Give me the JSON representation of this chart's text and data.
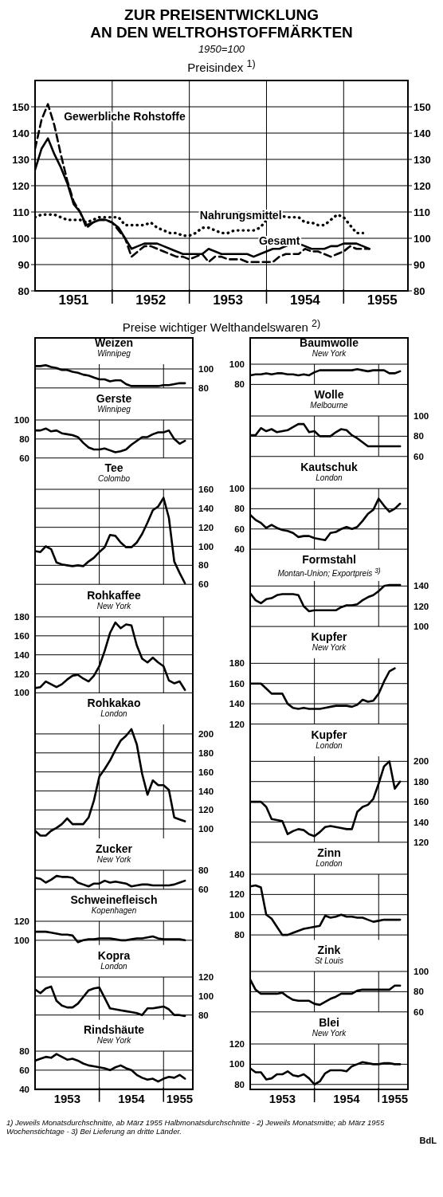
{
  "chart_data": [
    {
      "type": "line",
      "title": "ZUR PREISENTWICKLUNG\nAN DEN WELTROHSTOFFMÄRKTEN",
      "subtitle": "1950=100",
      "annotations": [
        "Preisindex $^{1)}$",
        "Preise wichtiger Welthandelswaren $^{2)}$",
        "1) Jeweils Monatsdurchschnitte, ab März 1955 Halbmonatsdurchschnitte - 2) Jeweils Monatsmitte; ab März 1955 Wochenstichtage - 3) Bei Lieferung an dritte Länder.",
        "BdL"
      ],
      "x": [
        "1951-01",
        "1951-02",
        "1951-03",
        "1951-04",
        "1951-05",
        "1951-06",
        "1951-07",
        "1951-08",
        "1951-09",
        "1951-10",
        "1951-11",
        "1951-12",
        "1952-01",
        "1952-02",
        "1952-03",
        "1952-04",
        "1952-05",
        "1952-06",
        "1952-07",
        "1952-08",
        "1952-09",
        "1952-10",
        "1952-11",
        "1952-12",
        "1953-01",
        "1953-02",
        "1953-03",
        "1953-04",
        "1953-05",
        "1953-06",
        "1953-07",
        "1953-08",
        "1953-09",
        "1953-10",
        "1953-11",
        "1953-12",
        "1954-01",
        "1954-02",
        "1954-03",
        "1954-04",
        "1954-05",
        "1954-06",
        "1954-07",
        "1954-08",
        "1954-09",
        "1954-10",
        "1954-11",
        "1954-12",
        "1955-01",
        "1955-02",
        "1955-03",
        "1955-04",
        "1955-05"
      ],
      "series": [
        {
          "name": "Gesamt",
          "color": "#000000",
          "line_style": "solid",
          "values": [
            126,
            134,
            138,
            132,
            127,
            121,
            113,
            110,
            105,
            106,
            107,
            107,
            106,
            104,
            100,
            96,
            97,
            98,
            98,
            98,
            97,
            96,
            95,
            94,
            94,
            94,
            94,
            96,
            95,
            94,
            94,
            94,
            94,
            94,
            93,
            94,
            95,
            96,
            96,
            97,
            98,
            98,
            97,
            96,
            96,
            96,
            97,
            97,
            98,
            98,
            98,
            97,
            96
          ]
        },
        {
          "name": "Gewerbliche Rohstoffe",
          "color": "#000000",
          "line_style": "dashed",
          "values": [
            134,
            145,
            151,
            143,
            132,
            122,
            114,
            110,
            104,
            106,
            107,
            107,
            106,
            103,
            100,
            93,
            95,
            97,
            97,
            96,
            95,
            94,
            93,
            93,
            92,
            93,
            94,
            91,
            93,
            93,
            92,
            92,
            92,
            91,
            91,
            91,
            91,
            91,
            93,
            94,
            94,
            94,
            96,
            95,
            95,
            94,
            93,
            94,
            95,
            97,
            96,
            96,
            96
          ]
        },
        {
          "name": "Nahrungsmittel",
          "color": "#000000",
          "line_style": "dotted",
          "values": [
            108,
            109,
            109,
            109,
            108,
            107,
            107,
            107,
            106,
            107,
            108,
            108,
            108,
            108,
            105,
            105,
            105,
            105,
            106,
            104,
            103,
            102,
            102,
            101,
            101,
            102,
            104,
            104,
            103,
            102,
            102,
            103,
            103,
            103,
            103,
            104,
            107,
            108,
            109,
            108,
            108,
            108,
            106,
            106,
            105,
            105,
            107,
            109,
            108,
            105,
            102,
            102,
            null
          ]
        }
      ],
      "xlim": [
        "1951-01",
        "1955-11"
      ],
      "xticks": [
        {
          "value": "1951-07",
          "label": "1951"
        },
        {
          "value": "1952-01",
          "label": null
        },
        {
          "value": "1952-07",
          "label": "1952"
        },
        {
          "value": "1953-01",
          "label": null
        },
        {
          "value": "1953-07",
          "label": "1953"
        },
        {
          "value": "1954-01",
          "label": null
        },
        {
          "value": "1954-07",
          "label": "1954"
        },
        {
          "value": "1955-01",
          "label": null
        },
        {
          "value": "1955-07",
          "label": "1955"
        }
      ],
      "ylim": [
        80,
        160
      ],
      "yticks": [
        80,
        90,
        100,
        110,
        120,
        130,
        140,
        150
      ],
      "y2lim": [
        80,
        160
      ],
      "y2ticks": [
        80,
        90,
        100,
        110,
        120,
        130,
        140,
        150
      ],
      "grid": true
    },
    {
      "type": "line",
      "title": "Weizen",
      "subtitle": "Winnipeg",
      "tick_labels": "y",
      "grid": true,
      "x": [
        "1953-01",
        "1953-02",
        "1953-03",
        "1953-04",
        "1953-05",
        "1953-06",
        "1953-07",
        "1953-08",
        "1953-09",
        "1953-10",
        "1953-11",
        "1953-12",
        "1954-01",
        "1954-02",
        "1954-03",
        "1954-04",
        "1954-05",
        "1954-06",
        "1954-07",
        "1954-08",
        "1954-09",
        "1954-10",
        "1954-11",
        "1954-12",
        "1955-01",
        "1955-02",
        "1955-03",
        "1955-04",
        "1955-05"
      ],
      "xlim": [
        "1953-01",
        "1955-06-15"
      ],
      "xticks": [
        {
          "value": "1954-01",
          "label": null
        },
        {
          "value": "1955-01",
          "label": null
        }
      ],
      "ylim": [
        80,
        105
      ],
      "yticks": [
        80,
        100
      ],
      "series": [
        {
          "color": "#000000",
          "values": [
            103,
            103,
            104,
            102,
            101,
            99,
            99,
            97,
            96,
            94,
            93,
            91,
            89,
            89,
            87,
            88,
            88,
            84,
            82,
            82,
            82,
            82,
            82,
            82,
            83,
            83,
            84,
            85,
            85
          ]
        }
      ]
    },
    {
      "type": "line",
      "title": "Gerste",
      "subtitle": "Winnipeg",
      "tick_labels": "y",
      "grid": true,
      "x": [
        "1953-01",
        "1953-02",
        "1953-03",
        "1953-04",
        "1953-05",
        "1953-06",
        "1953-07",
        "1953-08",
        "1953-09",
        "1953-10",
        "1953-11",
        "1953-12",
        "1954-01",
        "1954-02",
        "1954-03",
        "1954-04",
        "1954-05",
        "1954-06",
        "1954-07",
        "1954-08",
        "1954-09",
        "1954-10",
        "1954-11",
        "1954-12",
        "1955-01",
        "1955-02",
        "1955-03",
        "1955-04",
        "1955-05"
      ],
      "xlim": [
        "1953-01",
        "1955-06-15"
      ],
      "xticks": [
        {
          "value": "1954-01",
          "label": null
        },
        {
          "value": "1955-01",
          "label": null
        }
      ],
      "ylim": [
        60,
        100
      ],
      "yticks": [
        60,
        80,
        100
      ],
      "series": [
        {
          "color": "#000000",
          "values": [
            89,
            89,
            91,
            88,
            89,
            86,
            85,
            84,
            82,
            76,
            71,
            69,
            69,
            70,
            68,
            66,
            67,
            69,
            74,
            78,
            82,
            82,
            85,
            87,
            87,
            89,
            80,
            75,
            78
          ]
        }
      ]
    },
    {
      "type": "line",
      "title": "Tee",
      "subtitle": "Colombo",
      "tick_labels": "y",
      "grid": true,
      "x": [
        "1953-01",
        "1953-02",
        "1953-03",
        "1953-04",
        "1953-05",
        "1953-06",
        "1953-07",
        "1953-08",
        "1953-09",
        "1953-10",
        "1953-11",
        "1953-12",
        "1954-01",
        "1954-02",
        "1954-03",
        "1954-04",
        "1954-05",
        "1954-06",
        "1954-07",
        "1954-08",
        "1954-09",
        "1954-10",
        "1954-11",
        "1954-12",
        "1955-01",
        "1955-02",
        "1955-03",
        "1955-04",
        "1955-05"
      ],
      "xlim": [
        "1953-01",
        "1955-06-15"
      ],
      "xticks": [
        {
          "value": "1954-01",
          "label": null
        },
        {
          "value": "1955-01",
          "label": null
        }
      ],
      "ylim": [
        60,
        160
      ],
      "yticks": [
        60,
        80,
        100,
        120,
        140,
        160
      ],
      "series": [
        {
          "color": "#000000",
          "values": [
            95,
            94,
            100,
            97,
            83,
            81,
            80,
            79,
            80,
            79,
            84,
            88,
            94,
            99,
            112,
            111,
            104,
            99,
            99,
            104,
            113,
            125,
            138,
            142,
            151,
            130,
            84,
            72,
            61
          ]
        }
      ]
    },
    {
      "type": "line",
      "title": "Rohkaffee",
      "subtitle": "New York",
      "tick_labels": "y",
      "grid": true,
      "x": [
        "1953-01",
        "1953-02",
        "1953-03",
        "1953-04",
        "1953-05",
        "1953-06",
        "1953-07",
        "1953-08",
        "1953-09",
        "1953-10",
        "1953-11",
        "1953-12",
        "1954-01",
        "1954-02",
        "1954-03",
        "1954-04",
        "1954-05",
        "1954-06",
        "1954-07",
        "1954-08",
        "1954-09",
        "1954-10",
        "1954-11",
        "1954-12",
        "1955-01",
        "1955-02",
        "1955-03",
        "1955-04",
        "1955-05"
      ],
      "xlim": [
        "1953-01",
        "1955-06-15"
      ],
      "xticks": [
        {
          "value": "1954-01",
          "label": null
        },
        {
          "value": "1955-01",
          "label": null
        }
      ],
      "ylim": [
        100,
        180
      ],
      "yticks": [
        100,
        120,
        140,
        160,
        180
      ],
      "series": [
        {
          "color": "#000000",
          "values": [
            105,
            106,
            112,
            109,
            106,
            109,
            114,
            118,
            119,
            115,
            112,
            118,
            128,
            144,
            163,
            174,
            168,
            172,
            171,
            150,
            136,
            132,
            137,
            132,
            128,
            113,
            110,
            112,
            103
          ]
        }
      ]
    },
    {
      "type": "line",
      "title": "Rohkakao",
      "subtitle": "London",
      "tick_labels": "y",
      "grid": true,
      "x": [
        "1953-01",
        "1953-02",
        "1953-03",
        "1953-04",
        "1953-05",
        "1953-06",
        "1953-07",
        "1953-08",
        "1953-09",
        "1953-10",
        "1953-11",
        "1953-12",
        "1954-01",
        "1954-02",
        "1954-03",
        "1954-04",
        "1954-05",
        "1954-06",
        "1954-07",
        "1954-08",
        "1954-09",
        "1954-10",
        "1954-11",
        "1954-12",
        "1955-01",
        "1955-02",
        "1955-03",
        "1955-04",
        "1955-05"
      ],
      "xlim": [
        "1953-01",
        "1955-06-15"
      ],
      "xticks": [
        {
          "value": "1954-01",
          "label": null
        },
        {
          "value": "1955-01",
          "label": null
        }
      ],
      "ylim": [
        90,
        210
      ],
      "yticks": [
        100,
        120,
        140,
        160,
        180,
        200
      ],
      "series": [
        {
          "color": "#000000",
          "values": [
            98,
            93,
            93,
            98,
            101,
            105,
            111,
            105,
            105,
            105,
            112,
            130,
            155,
            163,
            172,
            183,
            193,
            198,
            205,
            189,
            158,
            136,
            151,
            146,
            146,
            141,
            112,
            110,
            108
          ]
        }
      ]
    },
    {
      "type": "line",
      "title": "Zucker",
      "subtitle": "New York",
      "tick_labels": "y",
      "grid": true,
      "x": [
        "1953-01",
        "1953-02",
        "1953-03",
        "1953-04",
        "1953-05",
        "1953-06",
        "1953-07",
        "1953-08",
        "1953-09",
        "1953-10",
        "1953-11",
        "1953-12",
        "1954-01",
        "1954-02",
        "1954-03",
        "1954-04",
        "1954-05",
        "1954-06",
        "1954-07",
        "1954-08",
        "1954-09",
        "1954-10",
        "1954-11",
        "1954-12",
        "1955-01",
        "1955-02",
        "1955-03",
        "1955-04",
        "1955-05"
      ],
      "xlim": [
        "1953-01",
        "1955-06-15"
      ],
      "xticks": [
        {
          "value": "1954-01",
          "label": null
        },
        {
          "value": "1955-01",
          "label": null
        }
      ],
      "ylim": [
        60,
        80
      ],
      "yticks": [
        60,
        80
      ],
      "series": [
        {
          "color": "#000000",
          "values": [
            72,
            71,
            67,
            70,
            74,
            73,
            73,
            72,
            67,
            65,
            63,
            66,
            66,
            69,
            67,
            68,
            67,
            66,
            63,
            64,
            65,
            65,
            64,
            64,
            64,
            64,
            65,
            67,
            69
          ]
        }
      ]
    },
    {
      "type": "line",
      "title": "Schweinefleisch",
      "subtitle": "Kopenhagen",
      "tick_labels": "y",
      "grid": true,
      "x": [
        "1953-01",
        "1953-02",
        "1953-03",
        "1953-04",
        "1953-05",
        "1953-06",
        "1953-07",
        "1953-08",
        "1953-09",
        "1953-10",
        "1953-11",
        "1953-12",
        "1954-01",
        "1954-02",
        "1954-03",
        "1954-04",
        "1954-05",
        "1954-06",
        "1954-07",
        "1954-08",
        "1954-09",
        "1954-10",
        "1954-11",
        "1954-12",
        "1955-01",
        "1955-02",
        "1955-03",
        "1955-04",
        "1955-05"
      ],
      "xlim": [
        "1953-01",
        "1955-06-15"
      ],
      "xticks": [
        {
          "value": "1954-01",
          "label": null
        },
        {
          "value": "1955-01",
          "label": null
        }
      ],
      "ylim": [
        95,
        120
      ],
      "yticks": [
        100,
        120
      ],
      "series": [
        {
          "color": "#000000",
          "values": [
            109,
            109,
            109,
            108,
            107,
            106,
            106,
            105,
            98,
            100,
            101,
            101,
            102,
            102,
            102,
            101,
            100,
            100,
            101,
            102,
            102,
            103,
            104,
            102,
            101,
            101,
            101,
            101,
            100
          ]
        }
      ]
    },
    {
      "type": "line",
      "title": "Kopra",
      "subtitle": "London",
      "tick_labels": "y",
      "grid": true,
      "x": [
        "1953-01",
        "1953-02",
        "1953-03",
        "1953-04",
        "1953-05",
        "1953-06",
        "1953-07",
        "1953-08",
        "1953-09",
        "1953-10",
        "1953-11",
        "1953-12",
        "1954-01",
        "1954-02",
        "1954-03",
        "1954-04",
        "1954-05",
        "1954-06",
        "1954-07",
        "1954-08",
        "1954-09",
        "1954-10",
        "1954-11",
        "1954-12",
        "1955-01",
        "1955-02",
        "1955-03",
        "1955-04",
        "1955-05"
      ],
      "xlim": [
        "1953-01",
        "1955-06-15"
      ],
      "xticks": [
        {
          "value": "1954-01",
          "label": null
        },
        {
          "value": "1955-01",
          "label": null
        }
      ],
      "ylim": [
        75,
        120
      ],
      "yticks": [
        80,
        100,
        120
      ],
      "series": [
        {
          "color": "#000000",
          "values": [
            107,
            103,
            108,
            110,
            95,
            90,
            88,
            88,
            92,
            99,
            106,
            108,
            109,
            98,
            87,
            86,
            85,
            84,
            83,
            82,
            80,
            87,
            87,
            88,
            89,
            86,
            80,
            80,
            79
          ]
        }
      ]
    },
    {
      "type": "line",
      "title": "Rindshäute",
      "subtitle": "New York",
      "grid": true,
      "x": [
        "1953-01",
        "1953-02",
        "1953-03",
        "1953-04",
        "1953-05",
        "1953-06",
        "1953-07",
        "1953-08",
        "1953-09",
        "1953-10",
        "1953-11",
        "1953-12",
        "1954-01",
        "1954-02",
        "1954-03",
        "1954-04",
        "1954-05",
        "1954-06",
        "1954-07",
        "1954-08",
        "1954-09",
        "1954-10",
        "1954-11",
        "1954-12",
        "1955-01",
        "1955-02",
        "1955-03",
        "1955-04",
        "1955-05"
      ],
      "xlim": [
        "1953-01",
        "1955-06-15"
      ],
      "xticks": [
        {
          "value": "1953-07",
          "label": "1953"
        },
        {
          "value": "1954-01",
          "label": null
        },
        {
          "value": "1954-07",
          "label": "1954"
        },
        {
          "value": "1955-01",
          "label": null
        },
        {
          "value": "1955-04",
          "label": "1955"
        }
      ],
      "ylim": [
        40,
        80
      ],
      "yticks": [
        40,
        60,
        80
      ],
      "series": [
        {
          "color": "#000000",
          "values": [
            70,
            72,
            74,
            73,
            77,
            74,
            71,
            72,
            70,
            67,
            65,
            64,
            63,
            62,
            60,
            63,
            65,
            62,
            60,
            55,
            52,
            50,
            51,
            48,
            51,
            53,
            52,
            55,
            51
          ]
        }
      ]
    },
    {
      "type": "line",
      "title": "Baumwolle",
      "subtitle": "New York",
      "tick_labels": "y",
      "grid": true,
      "x": [
        "1953-01",
        "1953-02",
        "1953-03",
        "1953-04",
        "1953-05",
        "1953-06",
        "1953-07",
        "1953-08",
        "1953-09",
        "1953-10",
        "1953-11",
        "1953-12",
        "1954-01",
        "1954-02",
        "1954-03",
        "1954-04",
        "1954-05",
        "1954-06",
        "1954-07",
        "1954-08",
        "1954-09",
        "1954-10",
        "1954-11",
        "1954-12",
        "1955-01",
        "1955-02",
        "1955-03",
        "1955-04",
        "1955-05"
      ],
      "xlim": [
        "1953-01",
        "1955-06-15"
      ],
      "xticks": [
        {
          "value": "1954-01",
          "label": null
        },
        {
          "value": "1955-01",
          "label": null
        }
      ],
      "ylim": [
        80,
        100
      ],
      "yticks": [
        80,
        100
      ],
      "series": [
        {
          "color": "#000000",
          "values": [
            89,
            90,
            90,
            91,
            90,
            91,
            91,
            90,
            90,
            89,
            90,
            89,
            92,
            94,
            94,
            94,
            94,
            94,
            94,
            94,
            95,
            94,
            93,
            94,
            94,
            94,
            91,
            91,
            93
          ]
        }
      ]
    },
    {
      "type": "line",
      "title": "Wolle",
      "subtitle": "Melbourne",
      "tick_labels": "y",
      "grid": true,
      "x": [
        "1953-01",
        "1953-02",
        "1953-03",
        "1953-04",
        "1953-05",
        "1953-06",
        "1953-07",
        "1953-08",
        "1953-09",
        "1953-10",
        "1953-11",
        "1953-12",
        "1954-01",
        "1954-02",
        "1954-03",
        "1954-04",
        "1954-05",
        "1954-06",
        "1954-07",
        "1954-08",
        "1954-09",
        "1954-10",
        "1954-11",
        "1954-12",
        "1955-01",
        "1955-02",
        "1955-03",
        "1955-04",
        "1955-05"
      ],
      "xlim": [
        "1953-01",
        "1955-06-15"
      ],
      "xticks": [
        {
          "value": "1954-01",
          "label": null
        },
        {
          "value": "1955-01",
          "label": null
        }
      ],
      "ylim": [
        60,
        100
      ],
      "yticks": [
        60,
        80,
        100
      ],
      "series": [
        {
          "color": "#000000",
          "values": [
            81,
            81,
            88,
            85,
            87,
            84,
            85,
            86,
            89,
            92,
            92,
            84,
            85,
            80,
            80,
            80,
            84,
            87,
            86,
            81,
            78,
            74,
            70,
            70,
            70,
            70,
            70,
            70,
            70
          ]
        }
      ]
    },
    {
      "type": "line",
      "title": "Kautschuk",
      "subtitle": "London",
      "tick_labels": "y",
      "grid": true,
      "x": [
        "1953-01",
        "1953-02",
        "1953-03",
        "1953-04",
        "1953-05",
        "1953-06",
        "1953-07",
        "1953-08",
        "1953-09",
        "1953-10",
        "1953-11",
        "1953-12",
        "1954-01",
        "1954-02",
        "1954-03",
        "1954-04",
        "1954-05",
        "1954-06",
        "1954-07",
        "1954-08",
        "1954-09",
        "1954-10",
        "1954-11",
        "1954-12",
        "1955-01",
        "1955-02",
        "1955-03",
        "1955-04",
        "1955-05"
      ],
      "xlim": [
        "1953-01",
        "1955-06-15"
      ],
      "xticks": [
        {
          "value": "1954-01",
          "label": null
        },
        {
          "value": "1955-01",
          "label": null
        }
      ],
      "ylim": [
        40,
        100
      ],
      "yticks": [
        40,
        60,
        80,
        100
      ],
      "series": [
        {
          "color": "#000000",
          "values": [
            74,
            69,
            66,
            61,
            64,
            61,
            59,
            58,
            56,
            52,
            53,
            53,
            51,
            50,
            49,
            56,
            57,
            60,
            62,
            60,
            62,
            68,
            75,
            79,
            90,
            83,
            77,
            80,
            85
          ]
        }
      ]
    },
    {
      "type": "line",
      "title": "Formstahl",
      "subtitle": "Montan-Union; Exportpreis $^{3)}$",
      "tick_labels": "y",
      "grid": true,
      "x": [
        "1953-01",
        "1953-02",
        "1953-03",
        "1953-04",
        "1953-05",
        "1953-06",
        "1953-07",
        "1953-08",
        "1953-09",
        "1953-10",
        "1953-11",
        "1953-12",
        "1954-01",
        "1954-02",
        "1954-03",
        "1954-04",
        "1954-05",
        "1954-06",
        "1954-07",
        "1954-08",
        "1954-09",
        "1954-10",
        "1954-11",
        "1954-12",
        "1955-01",
        "1955-02",
        "1955-03",
        "1955-04",
        "1955-05"
      ],
      "xlim": [
        "1953-01",
        "1955-06-15"
      ],
      "xticks": [
        {
          "value": "1954-01",
          "label": null
        },
        {
          "value": "1955-01",
          "label": null
        }
      ],
      "ylim": [
        100,
        145
      ],
      "yticks": [
        100,
        120,
        140
      ],
      "series": [
        {
          "color": "#000000",
          "values": [
            133,
            126,
            123,
            127,
            128,
            131,
            132,
            132,
            132,
            131,
            120,
            115,
            116,
            116,
            116,
            116,
            116,
            119,
            121,
            121,
            122,
            126,
            129,
            131,
            135,
            140,
            141,
            141,
            141
          ]
        }
      ]
    },
    {
      "type": "line",
      "title": "Kupfer",
      "subtitle": "New York",
      "tick_labels": "y",
      "grid": true,
      "x": [
        "1953-01",
        "1953-02",
        "1953-03",
        "1953-04",
        "1953-05",
        "1953-06",
        "1953-07",
        "1953-08",
        "1953-09",
        "1953-10",
        "1953-11",
        "1953-12",
        "1954-01",
        "1954-02",
        "1954-03",
        "1954-04",
        "1954-05",
        "1954-06",
        "1954-07",
        "1954-08",
        "1954-09",
        "1954-10",
        "1954-11",
        "1954-12",
        "1955-01",
        "1955-02",
        "1955-03",
        "1955-04"
      ],
      "xlim": [
        "1953-01",
        "1955-06-15"
      ],
      "xticks": [
        {
          "value": "1954-01",
          "label": null
        },
        {
          "value": "1955-01",
          "label": null
        }
      ],
      "ylim": [
        120,
        185
      ],
      "yticks": [
        120,
        140,
        160,
        180
      ],
      "series": [
        {
          "color": "#000000",
          "values": [
            160,
            160,
            160,
            155,
            150,
            150,
            150,
            140,
            136,
            135,
            136,
            135,
            135,
            135,
            136,
            137,
            138,
            138,
            138,
            137,
            139,
            144,
            142,
            143,
            150,
            162,
            172,
            175
          ]
        }
      ]
    },
    {
      "type": "line",
      "title": "Kupfer",
      "subtitle": "London",
      "tick_labels": "y",
      "grid": true,
      "x": [
        "1953-01",
        "1953-02",
        "1953-03",
        "1953-04",
        "1953-05",
        "1953-06",
        "1953-07",
        "1953-08",
        "1953-09",
        "1953-10",
        "1953-11",
        "1953-12",
        "1954-01",
        "1954-02",
        "1954-03",
        "1954-04",
        "1954-05",
        "1954-06",
        "1954-07",
        "1954-08",
        "1954-09",
        "1954-10",
        "1954-11",
        "1954-12",
        "1955-01",
        "1955-02",
        "1955-03",
        "1955-04",
        "1955-05"
      ],
      "xlim": [
        "1953-01",
        "1955-06-15"
      ],
      "xticks": [
        {
          "value": "1954-01",
          "label": null
        },
        {
          "value": "1955-01",
          "label": null
        }
      ],
      "ylim": [
        120,
        205
      ],
      "yticks": [
        120,
        140,
        160,
        180,
        200
      ],
      "series": [
        {
          "color": "#000000",
          "values": [
            160,
            160,
            160,
            155,
            143,
            142,
            141,
            128,
            131,
            133,
            132,
            128,
            126,
            130,
            135,
            136,
            135,
            134,
            133,
            133,
            150,
            155,
            157,
            163,
            178,
            195,
            200,
            173,
            180
          ]
        }
      ]
    },
    {
      "type": "line",
      "title": "Zinn",
      "subtitle": "London",
      "tick_labels": "y",
      "grid": true,
      "x": [
        "1953-01",
        "1953-02",
        "1953-03",
        "1953-04",
        "1953-05",
        "1953-06",
        "1953-07",
        "1953-08",
        "1953-09",
        "1953-10",
        "1953-11",
        "1953-12",
        "1954-01",
        "1954-02",
        "1954-03",
        "1954-04",
        "1954-05",
        "1954-06",
        "1954-07",
        "1954-08",
        "1954-09",
        "1954-10",
        "1954-11",
        "1954-12",
        "1955-01",
        "1955-02",
        "1955-03",
        "1955-04",
        "1955-05"
      ],
      "xlim": [
        "1953-01",
        "1955-06-15"
      ],
      "xticks": [
        {
          "value": "1954-01",
          "label": null
        },
        {
          "value": "1955-01",
          "label": null
        }
      ],
      "ylim": [
        75,
        140
      ],
      "yticks": [
        80,
        100,
        120,
        140
      ],
      "series": [
        {
          "color": "#000000",
          "values": [
            128,
            129,
            127,
            100,
            96,
            88,
            80,
            80,
            82,
            84,
            86,
            87,
            88,
            89,
            99,
            97,
            98,
            100,
            98,
            98,
            97,
            97,
            95,
            93,
            94,
            95,
            95,
            95,
            95
          ]
        }
      ]
    },
    {
      "type": "line",
      "title": "Zink",
      "subtitle": "St Louis",
      "tick_labels": "y",
      "grid": true,
      "x": [
        "1953-01",
        "1953-02",
        "1953-03",
        "1953-04",
        "1953-05",
        "1953-06",
        "1953-07",
        "1953-08",
        "1953-09",
        "1953-10",
        "1953-11",
        "1953-12",
        "1954-01",
        "1954-02",
        "1954-03",
        "1954-04",
        "1954-05",
        "1954-06",
        "1954-07",
        "1954-08",
        "1954-09",
        "1954-10",
        "1954-11",
        "1954-12",
        "1955-01",
        "1955-02",
        "1955-03",
        "1955-04",
        "1955-05"
      ],
      "xlim": [
        "1953-01",
        "1955-06-15"
      ],
      "xticks": [
        {
          "value": "1954-01",
          "label": null
        },
        {
          "value": "1955-01",
          "label": null
        }
      ],
      "ylim": [
        60,
        100
      ],
      "yticks": [
        60,
        80,
        100
      ],
      "series": [
        {
          "color": "#000000",
          "values": [
            92,
            82,
            78,
            78,
            78,
            78,
            79,
            75,
            72,
            71,
            71,
            71,
            68,
            67,
            70,
            73,
            75,
            78,
            78,
            78,
            81,
            82,
            82,
            82,
            82,
            82,
            82,
            86,
            86
          ]
        }
      ]
    },
    {
      "type": "line",
      "title": "Blei",
      "subtitle": "New York",
      "grid": true,
      "x": [
        "1953-01",
        "1953-02",
        "1953-03",
        "1953-04",
        "1953-05",
        "1953-06",
        "1953-07",
        "1953-08",
        "1953-09",
        "1953-10",
        "1953-11",
        "1953-12",
        "1954-01",
        "1954-02",
        "1954-03",
        "1954-04",
        "1954-05",
        "1954-06",
        "1954-07",
        "1954-08",
        "1954-09",
        "1954-10",
        "1954-11",
        "1954-12",
        "1955-01",
        "1955-02",
        "1955-03",
        "1955-04",
        "1955-05"
      ],
      "xlim": [
        "1953-01",
        "1955-06-15"
      ],
      "xticks": [
        {
          "value": "1953-07",
          "label": "1953"
        },
        {
          "value": "1954-01",
          "label": null
        },
        {
          "value": "1954-07",
          "label": "1954"
        },
        {
          "value": "1955-01",
          "label": null
        },
        {
          "value": "1955-04",
          "label": "1955"
        }
      ],
      "ylim": [
        75,
        120
      ],
      "yticks": [
        80,
        100,
        120
      ],
      "series": [
        {
          "color": "#000000",
          "values": [
            96,
            92,
            92,
            85,
            86,
            90,
            90,
            93,
            89,
            88,
            90,
            86,
            80,
            83,
            91,
            94,
            94,
            94,
            93,
            98,
            100,
            102,
            101,
            100,
            100,
            101,
            101,
            100,
            100
          ]
        }
      ]
    }
  ]
}
